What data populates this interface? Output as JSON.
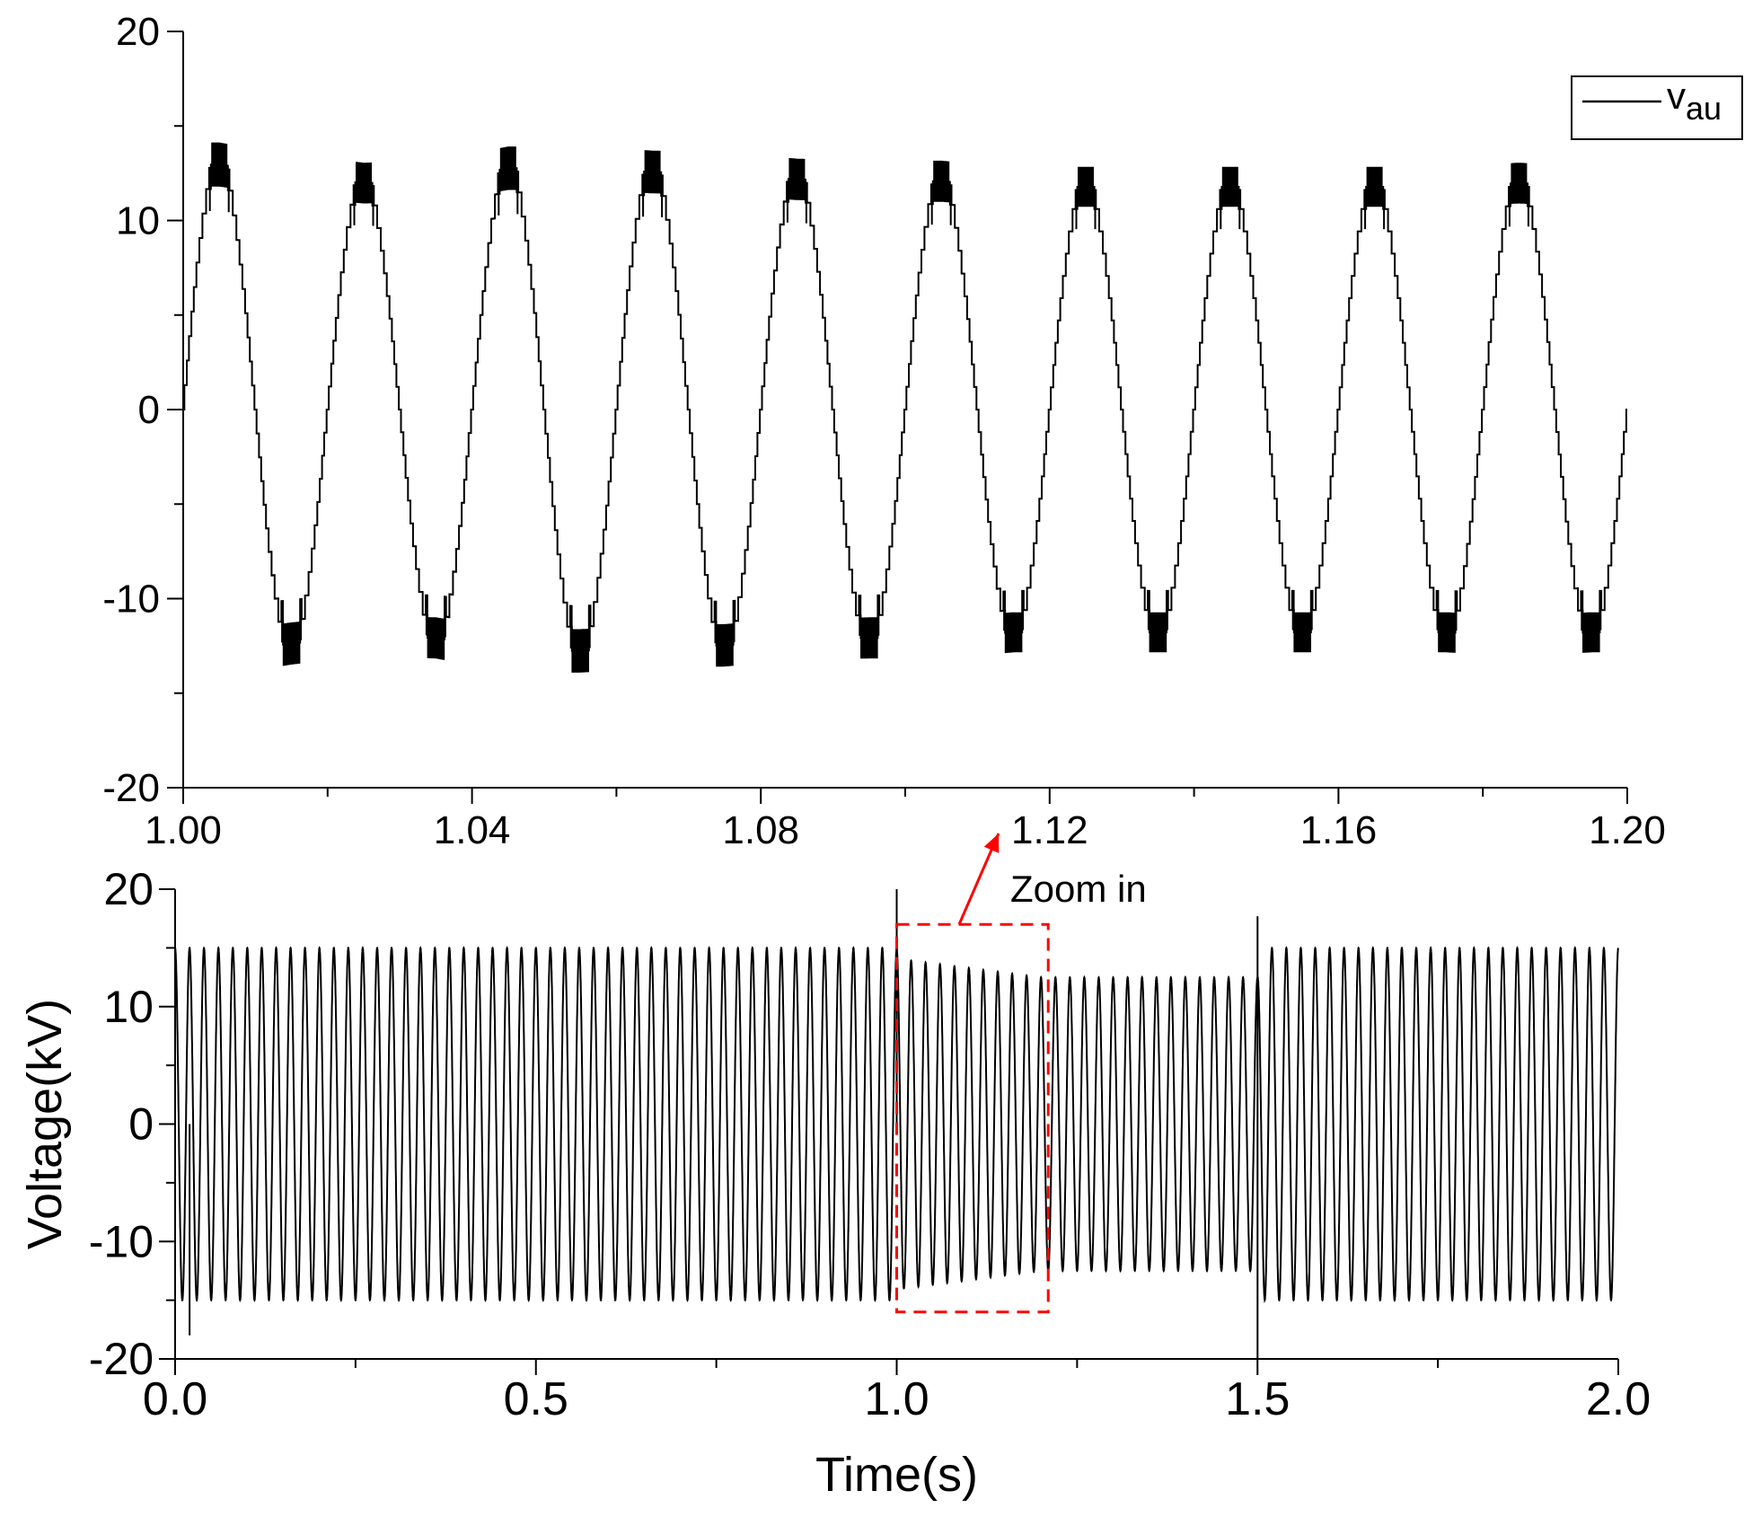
{
  "chart_data": [
    {
      "type": "line",
      "id": "top-zoom",
      "title": "",
      "xlabel": "",
      "ylabel": "",
      "xlim": [
        1.0,
        1.2
      ],
      "ylim": [
        -20,
        20
      ],
      "xticks": [
        1.0,
        1.04,
        1.08,
        1.12,
        1.16,
        1.2
      ],
      "xtick_labels": [
        "1.00",
        "1.04",
        "1.08",
        "1.12",
        "1.16",
        "1.20"
      ],
      "yticks": [
        -20,
        -10,
        0,
        10,
        20
      ],
      "ytick_labels": [
        "-20",
        "-10",
        "0",
        "10",
        "20"
      ],
      "grid": false,
      "legend": {
        "position": "top-right",
        "entries": [
          "v",
          "au"
        ]
      },
      "series": [
        {
          "name": "vau",
          "frequency_hz": 50,
          "x": [
            1.0,
            1.005,
            1.01,
            1.015,
            1.02,
            1.025,
            1.03,
            1.035,
            1.04,
            1.045,
            1.05,
            1.055,
            1.06,
            1.065,
            1.07,
            1.075,
            1.08,
            1.085,
            1.09,
            1.095,
            1.1,
            1.105,
            1.11,
            1.115,
            1.12,
            1.125,
            1.13,
            1.135,
            1.14,
            1.145,
            1.15,
            1.155,
            1.16,
            1.165,
            1.17,
            1.175,
            1.18,
            1.185,
            1.19,
            1.195,
            1.2
          ],
          "y": [
            0,
            13.2,
            0,
            -12.6,
            0,
            12.2,
            0,
            -12.3,
            0,
            13.0,
            0,
            -13.0,
            0,
            12.8,
            0,
            -12.7,
            0,
            12.4,
            0,
            -12.3,
            0,
            12.3,
            0,
            -12.0,
            0,
            12.0,
            0,
            -12.0,
            0,
            12.0,
            0,
            -12.0,
            0,
            12.0,
            0,
            -12.0,
            0,
            12.2,
            0,
            -12.0,
            0
          ]
        }
      ]
    },
    {
      "type": "line",
      "id": "bottom-full",
      "title": "",
      "xlabel": "Time(s)",
      "ylabel": "Voltage(kV)",
      "xlim": [
        0.0,
        2.0
      ],
      "ylim": [
        -20,
        20
      ],
      "xticks": [
        0.0,
        0.5,
        1.0,
        1.5,
        2.0
      ],
      "xtick_labels": [
        "0.0",
        "0.5",
        "1.0",
        "1.5",
        "2.0"
      ],
      "yticks": [
        -20,
        -10,
        0,
        10,
        20
      ],
      "ytick_labels": [
        "-20",
        "-10",
        "0",
        "10",
        "20"
      ],
      "grid": false,
      "series": [
        {
          "name": "",
          "frequency_hz": 50,
          "x": [
            0.0,
            0.02,
            1.0,
            1.01,
            1.2,
            1.5,
            1.51,
            2.0
          ],
          "amplitude": [
            15,
            15,
            15,
            14,
            12.5,
            12.5,
            15,
            15
          ],
          "spikes": [
            {
              "x": 0.02,
              "y": -18
            },
            {
              "x": 1.0,
              "y": 20
            },
            {
              "x": 1.5,
              "y": 17.7
            },
            {
              "x": 1.5,
              "y": -20
            }
          ]
        }
      ],
      "annotations": [
        {
          "text": "Zoom in",
          "x": 1.15,
          "y": 20
        }
      ],
      "zoom_box": {
        "x": [
          1.0,
          1.21
        ],
        "y": [
          -16,
          17
        ]
      }
    }
  ]
}
